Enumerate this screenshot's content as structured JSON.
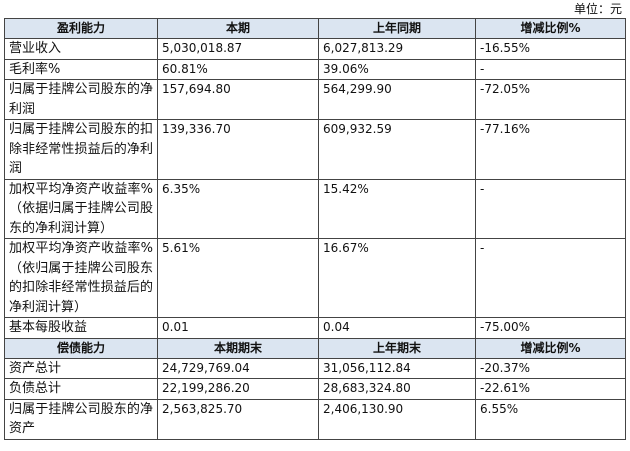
{
  "unit": "单位：元",
  "sections": [
    {
      "header": [
        "盈利能力",
        "本期",
        "上年同期",
        "增减比例%"
      ],
      "rows": [
        [
          "营业收入",
          "5,030,018.87",
          "6,027,813.29",
          "-16.55%"
        ],
        [
          "毛利率%",
          "60.81%",
          "39.06%",
          "-"
        ],
        [
          "归属于挂牌公司股东的净利润",
          "157,694.80",
          "564,299.90",
          "-72.05%"
        ],
        [
          "归属于挂牌公司股东的扣除非经常性损益后的净利润",
          "139,336.70",
          "609,932.59",
          "-77.16%"
        ],
        [
          "加权平均净资产收益率%（依据归属于挂牌公司股东的净利润计算）",
          "6.35%",
          "15.42%",
          "-"
        ],
        [
          "加权平均净资产收益率%（依归属于挂牌公司股东的扣除非经常性损益后的净利润计算）",
          "5.61%",
          "16.67%",
          "-"
        ],
        [
          "基本每股收益",
          "0.01",
          "0.04",
          "-75.00%"
        ]
      ]
    },
    {
      "header": [
        "偿债能力",
        "本期期末",
        "上年期末",
        "增减比例%"
      ],
      "rows": [
        [
          "资产总计",
          "24,729,769.04",
          "31,056,112.84",
          "-20.37%"
        ],
        [
          "负债总计",
          "22,199,286.20",
          "28,683,324.80",
          "-22.61%"
        ],
        [
          "归属于挂牌公司股东的净资产",
          "2,563,825.70",
          "2,406,130.90",
          "6.55%"
        ]
      ]
    }
  ]
}
